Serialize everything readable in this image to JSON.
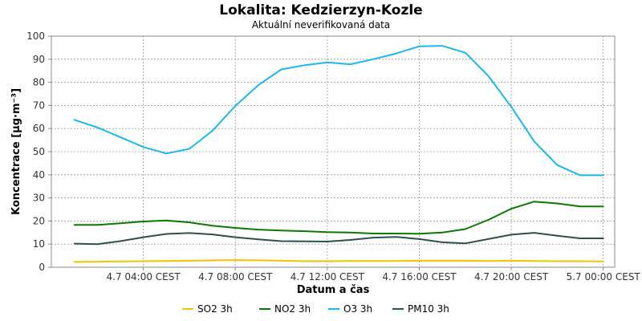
{
  "chart_data": {
    "type": "line",
    "title": "Lokalita: Kedzierzyn-Kozle",
    "subtitle": "Aktuální neverifikovaná data",
    "xlabel": "Datum a čas",
    "ylabel": "Koncentrace [µg·m⁻³]",
    "ylim": [
      0,
      100
    ],
    "yticks": [
      0,
      10,
      20,
      30,
      40,
      50,
      60,
      70,
      80,
      90,
      100
    ],
    "xlim": [
      0,
      24.5
    ],
    "xticks": [
      {
        "x": 4,
        "label": "4.7 04:00 CEST"
      },
      {
        "x": 8,
        "label": "4.7 08:00 CEST"
      },
      {
        "x": 12,
        "label": "4.7 12:00 CEST"
      },
      {
        "x": 16,
        "label": "4.7 16:00 CEST"
      },
      {
        "x": 20,
        "label": "4.7 20:00 CEST"
      },
      {
        "x": 24,
        "label": "5.7 00:00 CEST"
      }
    ],
    "grid": true,
    "legend_position": "bottom",
    "x": [
      1,
      2,
      3,
      4,
      5,
      6,
      7,
      8,
      9,
      10,
      11,
      12,
      13,
      14,
      15,
      16,
      17,
      18,
      19,
      20,
      21,
      22,
      23,
      24
    ],
    "series": [
      {
        "name": "SO2 3h",
        "color": "#f2c200",
        "values": [
          2.3,
          2.4,
          2.5,
          2.6,
          2.7,
          2.8,
          3.0,
          3.1,
          3.0,
          2.8,
          2.6,
          2.6,
          2.7,
          2.7,
          2.7,
          2.8,
          2.8,
          2.8,
          2.7,
          2.8,
          2.7,
          2.6,
          2.6,
          2.5
        ]
      },
      {
        "name": "NO2 3h",
        "color": "#0a7a00",
        "values": [
          18.3,
          18.3,
          19.0,
          19.8,
          20.2,
          19.4,
          18.0,
          17.0,
          16.3,
          15.9,
          15.6,
          15.2,
          15.0,
          14.6,
          14.6,
          14.5,
          15.0,
          16.5,
          20.5,
          25.3,
          28.4,
          27.6,
          26.3,
          26.3
        ]
      },
      {
        "name": "O3 3h",
        "color": "#1ab8ee",
        "values": [
          63.8,
          60.5,
          56.3,
          52.0,
          49.2,
          51.2,
          59.0,
          69.8,
          78.8,
          85.6,
          87.4,
          88.6,
          87.8,
          90.0,
          92.5,
          95.6,
          95.8,
          92.8,
          82.8,
          69.4,
          54.4,
          44.2,
          39.8,
          39.8
        ]
      },
      {
        "name": "PM10 3h",
        "color": "#2f4f4f",
        "values": [
          10.2,
          10.0,
          11.3,
          13.0,
          14.4,
          14.8,
          14.2,
          13.0,
          12.1,
          11.3,
          11.2,
          11.1,
          11.8,
          12.8,
          13.1,
          12.2,
          10.8,
          10.3,
          12.2,
          14.1,
          14.9,
          13.6,
          12.5,
          12.5
        ]
      }
    ]
  }
}
